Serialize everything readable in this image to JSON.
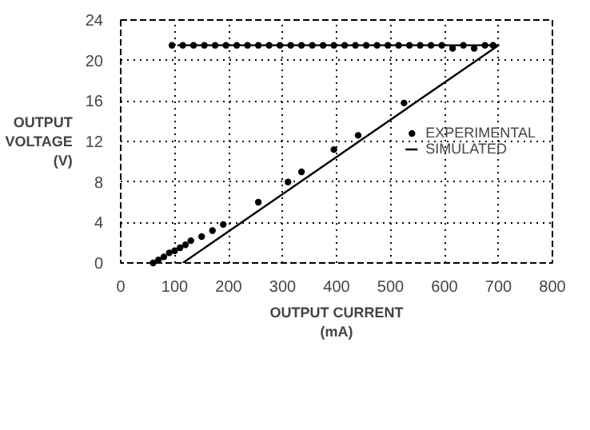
{
  "chart_data": {
    "type": "scatter",
    "xlabel": "OUTPUT CURRENT\n(mA)",
    "ylabel": "OUTPUT\nVOLTAGE\n(V)",
    "xlim": [
      0,
      800
    ],
    "ylim": [
      0,
      24
    ],
    "xticks": [
      0,
      100,
      200,
      300,
      400,
      500,
      600,
      700,
      800
    ],
    "yticks": [
      0,
      4,
      8,
      12,
      16,
      20,
      24
    ],
    "grid": true,
    "legend": "right",
    "series": [
      {
        "name": "EXPERIMENTAL",
        "marker": "circle",
        "color": "#000000",
        "x": [
          60,
          70,
          80,
          90,
          100,
          110,
          120,
          130,
          150,
          170,
          190,
          255,
          310,
          335,
          395,
          440,
          525,
          95,
          115,
          135,
          155,
          175,
          195,
          215,
          235,
          255,
          275,
          295,
          315,
          335,
          355,
          375,
          395,
          415,
          435,
          455,
          475,
          495,
          515,
          535,
          555,
          575,
          595,
          615,
          635,
          655,
          675,
          690
        ],
        "values": [
          0,
          0.3,
          0.6,
          1,
          1.2,
          1.5,
          1.8,
          2.2,
          2.6,
          3.2,
          3.8,
          6,
          8,
          9,
          11.2,
          12.6,
          15.8,
          21.5,
          21.5,
          21.5,
          21.5,
          21.5,
          21.5,
          21.5,
          21.5,
          21.5,
          21.5,
          21.5,
          21.5,
          21.5,
          21.5,
          21.5,
          21.5,
          21.5,
          21.5,
          21.5,
          21.5,
          21.5,
          21.5,
          21.5,
          21.5,
          21.5,
          21.5,
          21.2,
          21.5,
          21.2,
          21.5,
          21.5
        ]
      },
      {
        "name": "SIMULATED",
        "type": "line",
        "line_style": "solid",
        "color": "#000000",
        "x": [
          105,
          700,
          115
        ],
        "values": [
          21.5,
          21.5,
          0
        ]
      }
    ]
  }
}
